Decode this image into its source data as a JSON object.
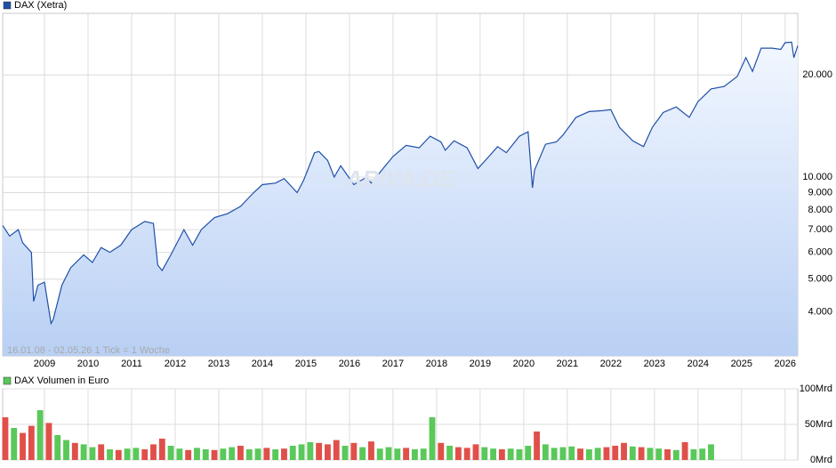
{
  "chart_data": [
    {
      "type": "line",
      "log_scale": true,
      "grid": true,
      "series": [
        {
          "name": "DAX (Xetra)",
          "color": "#1f4fa8",
          "values": [
            7200,
            6700,
            7000,
            6400,
            6000,
            4300,
            4800,
            4900,
            3700,
            3800,
            4800,
            5400,
            5900,
            5600,
            6200,
            6000,
            6300,
            7000,
            7400,
            7300,
            5500,
            5300,
            5900,
            7000,
            6300,
            7000,
            7600,
            7800,
            8200,
            9000,
            9500,
            9600,
            9900,
            9000,
            9800,
            11800,
            11900,
            11200,
            10000,
            10800,
            9500,
            10000,
            9600,
            10700,
            11500,
            12400,
            12200,
            13200,
            12700,
            12000,
            12800,
            12200,
            10600,
            11500,
            12300,
            11800,
            13200,
            13600,
            9300,
            10500,
            12500,
            12700,
            13300,
            15000,
            15600,
            15700,
            15800,
            14000,
            12800,
            12300,
            14000,
            15500,
            16100,
            15000,
            16700,
            18200,
            18500,
            19800,
            22500,
            20500,
            24000,
            24000,
            23800,
            24900,
            25000,
            22500,
            24400
          ]
        }
      ],
      "x": [
        2008.04,
        2008.2,
        2008.4,
        2008.5,
        2008.7,
        2008.75,
        2008.85,
        2009.0,
        2009.15,
        2009.2,
        2009.4,
        2009.6,
        2009.9,
        2010.1,
        2010.3,
        2010.5,
        2010.75,
        2011.0,
        2011.3,
        2011.5,
        2011.6,
        2011.7,
        2011.9,
        2012.2,
        2012.4,
        2012.6,
        2012.9,
        2013.2,
        2013.5,
        2013.8,
        2014.0,
        2014.3,
        2014.5,
        2014.8,
        2014.95,
        2015.2,
        2015.3,
        2015.5,
        2015.65,
        2015.8,
        2016.1,
        2016.4,
        2016.5,
        2016.8,
        2017.0,
        2017.3,
        2017.6,
        2017.85,
        2018.1,
        2018.2,
        2018.4,
        2018.7,
        2018.95,
        2019.2,
        2019.4,
        2019.6,
        2019.9,
        2020.1,
        2020.2,
        2020.25,
        2020.5,
        2020.75,
        2020.9,
        2021.2,
        2021.5,
        2021.8,
        2022.0,
        2022.2,
        2022.5,
        2022.75,
        2022.95,
        2023.2,
        2023.5,
        2023.8,
        2024.0,
        2024.3,
        2024.6,
        2024.9,
        2025.1,
        2025.25,
        2025.45,
        2025.7,
        2025.9,
        2026.0,
        2026.15,
        2026.2,
        2026.29
      ],
      "xlim": [
        2008.04,
        2026.29
      ],
      "xticks": [
        2009,
        2010,
        2011,
        2012,
        2013,
        2014,
        2015,
        2016,
        2017,
        2018,
        2019,
        2020,
        2021,
        2022,
        2023,
        2024,
        2025,
        2026
      ],
      "ylim": [
        2970,
        30400
      ],
      "yticks": [
        {
          "value": 4000,
          "label": "4.000"
        },
        {
          "value": 5000,
          "label": "5.000"
        },
        {
          "value": 6000,
          "label": "6.000"
        },
        {
          "value": 7000,
          "label": "7.000"
        },
        {
          "value": 8000,
          "label": "8.000"
        },
        {
          "value": 9000,
          "label": "9.000"
        },
        {
          "value": 10000,
          "label": "10.000"
        },
        {
          "value": 20000,
          "label": "20.000"
        }
      ],
      "annotations": [
        "16.01.08 - 02.05.26   1 Tick = 1 Woche",
        "ARIVA.DE"
      ]
    },
    {
      "type": "bar",
      "grid": true,
      "series": [
        {
          "name": "DAX Volumen in Euro",
          "color": "#5ac85a",
          "values": [
            60,
            45,
            38,
            48,
            70,
            52,
            35,
            28,
            24,
            22,
            18,
            22,
            15,
            14,
            16,
            17,
            15,
            22,
            30,
            20,
            16,
            14,
            17,
            15,
            14,
            16,
            18,
            20,
            15,
            16,
            17,
            15,
            16,
            20,
            22,
            25,
            24,
            22,
            28,
            20,
            24,
            18,
            26,
            16,
            18,
            16,
            17,
            15,
            16,
            60,
            24,
            20,
            18,
            17,
            22,
            18,
            16,
            15,
            16,
            15,
            20,
            40,
            22,
            17,
            18,
            19,
            16,
            15,
            17,
            18,
            20,
            24,
            19,
            18,
            17,
            16,
            15,
            14,
            25,
            15,
            16,
            22
          ],
          "colors": [
            "#e0504a",
            "#5ac85a",
            "#e0504a",
            "#e0504a",
            "#5ac85a",
            "#e0504a",
            "#5ac85a",
            "#5ac85a",
            "#e0504a",
            "#5ac85a",
            "#5ac85a",
            "#e0504a",
            "#5ac85a",
            "#e0504a",
            "#5ac85a",
            "#5ac85a",
            "#e0504a",
            "#e0504a",
            "#e0504a",
            "#5ac85a",
            "#5ac85a",
            "#e0504a",
            "#5ac85a",
            "#5ac85a",
            "#e0504a",
            "#5ac85a",
            "#5ac85a",
            "#e0504a",
            "#5ac85a",
            "#5ac85a",
            "#e0504a",
            "#5ac85a",
            "#e0504a",
            "#5ac85a",
            "#5ac85a",
            "#5ac85a",
            "#e0504a",
            "#e0504a",
            "#e0504a",
            "#5ac85a",
            "#e0504a",
            "#5ac85a",
            "#e0504a",
            "#5ac85a",
            "#5ac85a",
            "#5ac85a",
            "#e0504a",
            "#5ac85a",
            "#5ac85a",
            "#5ac85a",
            "#e0504a",
            "#5ac85a",
            "#e0504a",
            "#e0504a",
            "#e0504a",
            "#5ac85a",
            "#5ac85a",
            "#e0504a",
            "#5ac85a",
            "#5ac85a",
            "#5ac85a",
            "#e0504a",
            "#5ac85a",
            "#5ac85a",
            "#5ac85a",
            "#5ac85a",
            "#e0504a",
            "#5ac85a",
            "#5ac85a",
            "#e0504a",
            "#e0504a",
            "#e0504a",
            "#5ac85a",
            "#e0504a",
            "#5ac85a",
            "#5ac85a",
            "#e0504a",
            "#5ac85a",
            "#e0504a",
            "#5ac85a",
            "#5ac85a",
            "#5ac85a"
          ]
        }
      ],
      "x": [
        2008.1,
        2008.3,
        2008.5,
        2008.7,
        2008.9,
        2009.1,
        2009.3,
        2009.5,
        2009.7,
        2009.9,
        2010.1,
        2010.3,
        2010.5,
        2010.7,
        2010.9,
        2011.1,
        2011.3,
        2011.5,
        2011.7,
        2011.9,
        2012.1,
        2012.3,
        2012.5,
        2012.7,
        2012.9,
        2013.1,
        2013.3,
        2013.5,
        2013.7,
        2013.9,
        2014.1,
        2014.3,
        2014.5,
        2014.7,
        2014.9,
        2015.1,
        2015.3,
        2015.5,
        2015.7,
        2015.9,
        2016.1,
        2016.3,
        2016.5,
        2016.7,
        2016.9,
        2017.1,
        2017.3,
        2017.5,
        2017.7,
        2017.9,
        2018.1,
        2018.3,
        2018.5,
        2018.7,
        2018.9,
        2019.1,
        2019.3,
        2019.5,
        2019.7,
        2019.9,
        2020.1,
        2020.3,
        2020.5,
        2020.7,
        2020.9,
        2021.1,
        2021.3,
        2021.5,
        2021.7,
        2021.9,
        2022.1,
        2022.3,
        2022.5,
        2022.7,
        2022.9,
        2023.1,
        2023.3,
        2023.5,
        2023.7,
        2023.9,
        2024.1,
        2024.3
      ],
      "xlim": [
        2008.04,
        2026.29
      ],
      "xticks": [
        2009,
        2010,
        2011,
        2012,
        2013,
        2014,
        2015,
        2016,
        2017,
        2018,
        2019,
        2020,
        2021,
        2022,
        2023,
        2024,
        2025,
        2026
      ],
      "ylim": [
        0,
        100
      ],
      "yticks": [
        {
          "value": 0,
          "label": "0Mrd"
        },
        {
          "value": 50,
          "label": "50Mrd"
        },
        {
          "value": 100,
          "label": "100Mrd"
        }
      ]
    }
  ]
}
